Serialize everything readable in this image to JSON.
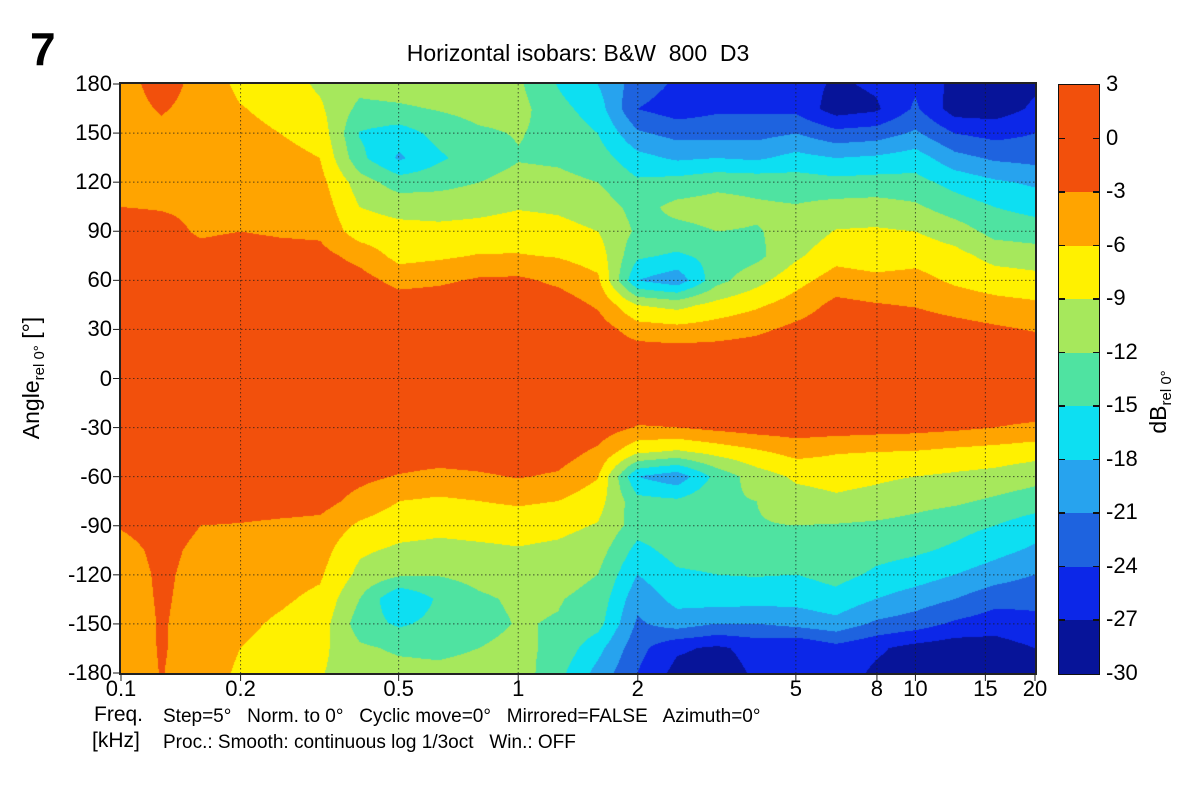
{
  "figure_number": "7",
  "title": "Horizontal isobars: B&W  800  D3",
  "footer": {
    "freq_label_line1": "Freq.",
    "freq_label_line2": "[kHz]",
    "settings_line1": "Step=5°   Norm. to 0°   Cyclic move=0°   Mirrored=FALSE   Azimuth=0°",
    "settings_line2": "Proc.: Smooth: continuous log 1/3oct   Win.: OFF"
  },
  "chart_data": {
    "type": "heatmap",
    "title": "Horizontal isobars: B&W  800  D3",
    "x_axis": {
      "label": "Freq. [kHz]",
      "scale": "log",
      "min": 0.1,
      "max": 20,
      "ticks": [
        0.1,
        0.2,
        0.5,
        1,
        2,
        5,
        8,
        10,
        15,
        20
      ],
      "tick_labels": [
        "0.1",
        "0.2",
        "0.5",
        "1",
        "2",
        "5",
        "8",
        "10",
        "15",
        "20"
      ]
    },
    "y_axis": {
      "label_main": "Angle",
      "label_sub": "rel 0°",
      "label_unit": " [°]",
      "min": -180,
      "max": 180,
      "tick_step": 30,
      "ticks": [
        180,
        150,
        120,
        90,
        60,
        30,
        0,
        -30,
        -60,
        -90,
        -120,
        -150,
        -180
      ]
    },
    "colorbar": {
      "label_main": "dB",
      "label_sub": "rel 0°",
      "tick_labels": [
        "3",
        "0",
        "-3",
        "-6",
        "-9",
        "-12",
        "-15",
        "-18",
        "-21",
        "-24",
        "-27",
        "-30"
      ],
      "segment_colors": [
        "#f2500c",
        "#f2500c",
        "#ffa400",
        "#fff100",
        "#a6e85c",
        "#4fe3a1",
        "#0ddff2",
        "#27a3ee",
        "#1e63df",
        "#0c27e8",
        "#071499"
      ]
    },
    "levels": {
      "thresholds_db": [
        -3,
        -6,
        -9,
        -12,
        -15,
        -18,
        -21,
        -24,
        -27
      ],
      "colors": [
        "#f2500c",
        "#ffa400",
        "#fff100",
        "#a6e85c",
        "#4fe3a1",
        "#0ddff2",
        "#27a3ee",
        "#1e63df",
        "#0c27e8",
        "#071499"
      ]
    },
    "gridlines": {
      "x_values": [
        0.2,
        0.5,
        1,
        2,
        5,
        8,
        10,
        15
      ],
      "y_values": [
        150,
        120,
        90,
        60,
        30,
        0,
        -30,
        -60,
        -90,
        -120,
        -150
      ]
    },
    "grid": {
      "frequencies_khz": [
        0.1,
        0.125,
        0.16,
        0.2,
        0.25,
        0.315,
        0.4,
        0.5,
        0.63,
        0.8,
        1.0,
        1.25,
        1.6,
        2.0,
        2.5,
        3.15,
        4.0,
        5.0,
        6.3,
        8.0,
        10.0,
        12.5,
        16.0,
        20.0
      ],
      "angles_deg": [
        180,
        165,
        150,
        135,
        120,
        105,
        90,
        75,
        60,
        45,
        30,
        15,
        0,
        -15,
        -30,
        -45,
        -60,
        -75,
        -90,
        -105,
        -120,
        -135,
        -150,
        -165,
        -180
      ],
      "values_db": [
        [
          -4,
          -2,
          -3.8,
          -6.8,
          -7.5,
          -9.5,
          -11,
          -10.5,
          -10,
          -9.8,
          -11.5,
          -15.2,
          -18,
          -22.5,
          -24.5,
          -25,
          -24,
          -25.5,
          -27.5,
          -26.5,
          -24.5,
          -28,
          -29,
          -27.5
        ],
        [
          -4,
          -2.8,
          -3.8,
          -5.8,
          -7,
          -8.5,
          -12.8,
          -12.5,
          -11.8,
          -11,
          -11,
          -14,
          -16.5,
          -24,
          -25.5,
          -24.5,
          -24.5,
          -24.8,
          -28.5,
          -27.5,
          -23.5,
          -28.5,
          -28.5,
          -26.5
        ],
        [
          -4,
          -3.5,
          -4,
          -5,
          -6,
          -7.2,
          -15.2,
          -16.5,
          -14,
          -12.5,
          -11.8,
          -13,
          -15,
          -20.5,
          -22,
          -22,
          -22,
          -21,
          -23,
          -22.5,
          -20.5,
          -24,
          -25,
          -24
        ],
        [
          -4,
          -4,
          -4.2,
          -4.5,
          -5,
          -6,
          -14.2,
          -18.5,
          -15.5,
          -13.5,
          -12.2,
          -12.5,
          -13.5,
          -17,
          -18.5,
          -18,
          -18.5,
          -17,
          -18,
          -17.5,
          -16.5,
          -20,
          -21.5,
          -22
        ],
        [
          -3.5,
          -4,
          -4,
          -4.2,
          -4.4,
          -5,
          -10.5,
          -13.5,
          -13,
          -12,
          -11,
          -11.2,
          -12,
          -14.5,
          -13.8,
          -12.8,
          -13,
          -13.5,
          -14,
          -13.8,
          -14,
          -16,
          -17.5,
          -18.5
        ],
        [
          -3,
          -3.2,
          -3.5,
          -3.8,
          -4,
          -4.3,
          -9,
          -10,
          -10.2,
          -9.8,
          -9.2,
          -9.5,
          -10.5,
          -13,
          -11.2,
          -10.8,
          -11.5,
          -11.8,
          -11,
          -10.8,
          -11.5,
          -13.5,
          -15,
          -16
        ],
        [
          -1.5,
          -2,
          -3.4,
          -3,
          -3.4,
          -3.6,
          -7.5,
          -8,
          -8.2,
          -8,
          -7.6,
          -8,
          -9,
          -12.5,
          -12.8,
          -12,
          -12.2,
          -11,
          -8.8,
          -8.6,
          -9,
          -10.5,
          -13,
          -13.5
        ],
        [
          -1,
          -1,
          -2,
          -1.5,
          -1.8,
          -2,
          -4,
          -7,
          -6.5,
          -5.8,
          -5.8,
          -6.2,
          -7.4,
          -14.5,
          -15.5,
          -14,
          -12.8,
          -9.5,
          -7,
          -7.6,
          -7,
          -8,
          -10,
          -10.5
        ],
        [
          -1,
          -1,
          -1,
          -1,
          -1,
          -1,
          -1.8,
          -4,
          -3.5,
          -2.6,
          -2.4,
          -3.6,
          -5.4,
          -18,
          -20,
          -13,
          -10,
          -7,
          -4.6,
          -5.2,
          -5,
          -6.5,
          -7.5,
          -8
        ],
        [
          -1,
          -1,
          -1,
          -1,
          -1,
          -1,
          -1,
          -1.3,
          -1.2,
          -1.1,
          -1.2,
          -1.4,
          -3.4,
          -9,
          -10,
          -8,
          -6.5,
          -4.6,
          -2.2,
          -2.8,
          -3.2,
          -4.2,
          -5,
          -5.5
        ],
        [
          -1,
          -1,
          -1,
          -1,
          -1,
          -1,
          -1,
          -1,
          -1,
          -1,
          -1,
          -1,
          -1.4,
          -4.5,
          -5,
          -4.5,
          -3.6,
          -2.2,
          -1,
          -1.1,
          -1.2,
          -1.8,
          -2.5,
          -3.2
        ],
        [
          -1,
          -1,
          -1,
          -1,
          -1,
          -1,
          -1,
          -1,
          -1,
          -1,
          -1,
          -1,
          -1,
          -1.3,
          -1.5,
          -1.4,
          -1.2,
          -1,
          -1,
          -1,
          -1,
          -1,
          -1,
          -1
        ],
        [
          -1,
          -1,
          -1,
          -1,
          -1,
          -1,
          -1,
          -1,
          -1,
          -1,
          -1,
          -1,
          -1,
          -1,
          -1,
          -1,
          -1,
          -1,
          -1,
          -1,
          -1,
          -1,
          -1,
          -1
        ],
        [
          -1,
          -1,
          -1,
          -1,
          -1,
          -1,
          -1,
          -1,
          -1,
          -1,
          -1,
          -1,
          -1,
          -1.2,
          -1.4,
          -1.4,
          -1.2,
          -1,
          -1,
          -1,
          -1,
          -1,
          -1,
          -1
        ],
        [
          -1,
          -1,
          -1,
          -1,
          -1,
          -1,
          -1,
          -1,
          -1,
          -1,
          -1,
          -1.2,
          -1.3,
          -3.2,
          -3,
          -2.2,
          -1.6,
          -1.4,
          -1.5,
          -1.8,
          -2,
          -2.4,
          -3,
          -3.6
        ],
        [
          -1,
          -1,
          -1,
          -1,
          -1,
          -1,
          -1.2,
          -1.3,
          -1.5,
          -1.4,
          -1.3,
          -1.6,
          -3.6,
          -8.5,
          -9.5,
          -8,
          -6.5,
          -5,
          -5.8,
          -6,
          -6.2,
          -6.8,
          -7.2,
          -7.8
        ],
        [
          -1,
          -1,
          -1,
          -1,
          -1,
          -1.2,
          -2.2,
          -3.2,
          -3.8,
          -3.4,
          -2.8,
          -3.4,
          -5.8,
          -18,
          -20,
          -14,
          -10.5,
          -8.5,
          -8,
          -8.5,
          -9,
          -9.5,
          -10,
          -11
        ],
        [
          -1,
          -1,
          -1,
          -1.3,
          -1.5,
          -1.8,
          -4,
          -6,
          -6.5,
          -6,
          -5.5,
          -6,
          -7.8,
          -14,
          -14.5,
          -12.5,
          -12,
          -10.2,
          -9.5,
          -10,
          -11,
          -11.5,
          -12.5,
          -13.5
        ],
        [
          -2.8,
          -2,
          -3,
          -3.2,
          -3.6,
          -3.9,
          -6.5,
          -7.8,
          -8.2,
          -8,
          -7.8,
          -8.2,
          -9.2,
          -13.5,
          -13,
          -12.8,
          -12.2,
          -12,
          -12.2,
          -12.5,
          -13,
          -14,
          -15,
          -16.5
        ],
        [
          -3.8,
          -2.4,
          -3.5,
          -4.2,
          -4.5,
          -4.8,
          -8.5,
          -9.5,
          -9.8,
          -9.5,
          -9.2,
          -9.6,
          -10.6,
          -16,
          -13.8,
          -13.5,
          -13.2,
          -13.5,
          -12.5,
          -14,
          -14.5,
          -15.5,
          -17,
          -18.5
        ],
        [
          -4.2,
          -2.6,
          -3.7,
          -4.6,
          -5,
          -5.6,
          -9.8,
          -11.5,
          -11.8,
          -11,
          -10.5,
          -10.8,
          -12,
          -18,
          -15.5,
          -15,
          -14.8,
          -15,
          -14,
          -15.5,
          -16.5,
          -18,
          -19.5,
          -21
        ],
        [
          -4.3,
          -2.7,
          -3.8,
          -5,
          -5.6,
          -6.6,
          -12,
          -18,
          -14.5,
          -12.5,
          -11.5,
          -11.8,
          -13,
          -20,
          -17,
          -16.5,
          -16.8,
          -17,
          -16,
          -18,
          -19.5,
          -21,
          -23,
          -23.5
        ],
        [
          -4.4,
          -2.8,
          -3.9,
          -5.4,
          -6.4,
          -7.4,
          -13.5,
          -15.5,
          -14,
          -13,
          -11.8,
          -12.2,
          -13.8,
          -21.5,
          -19.5,
          -21,
          -21,
          -20,
          -19,
          -21.5,
          -22.5,
          -24.5,
          -25.5,
          -24.5
        ],
        [
          -4.5,
          -2.8,
          -4,
          -6,
          -7,
          -8.2,
          -11.5,
          -12.5,
          -12.8,
          -12,
          -11.2,
          -12.8,
          -17,
          -23,
          -26.5,
          -27.5,
          -26,
          -27,
          -25,
          -26.5,
          -28,
          -28.8,
          -28.5,
          -27
        ],
        [
          -4.6,
          -2.9,
          -4.1,
          -6.6,
          -7.6,
          -8.8,
          -10.5,
          -11,
          -11.2,
          -10.8,
          -10.5,
          -14,
          -19,
          -24,
          -28,
          -28.5,
          -26.5,
          -26.5,
          -25.5,
          -27.5,
          -28.5,
          -29,
          -29,
          -27.5
        ]
      ]
    }
  }
}
